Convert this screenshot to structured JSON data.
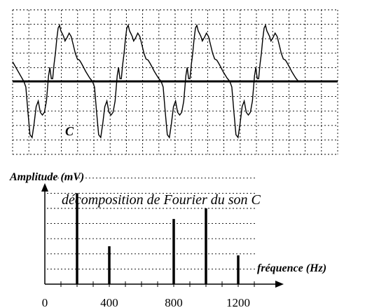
{
  "chart_data": [
    {
      "type": "line",
      "title": "",
      "curve_label": "C",
      "xlabel": "",
      "ylabel": "",
      "grid": true,
      "baseline": "center",
      "periods": 4,
      "waveform_period_samples": [
        [
          0.0,
          0.0
        ],
        [
          0.03,
          -0.1
        ],
        [
          0.06,
          -0.55
        ],
        [
          0.09,
          -0.95
        ],
        [
          0.12,
          -1.0
        ],
        [
          0.15,
          -0.75
        ],
        [
          0.18,
          -0.45
        ],
        [
          0.21,
          -0.35
        ],
        [
          0.24,
          -0.55
        ],
        [
          0.27,
          -0.6
        ],
        [
          0.3,
          -0.55
        ],
        [
          0.33,
          -0.35
        ],
        [
          0.36,
          0.1
        ],
        [
          0.38,
          0.25
        ],
        [
          0.4,
          0.05
        ],
        [
          0.42,
          0.05
        ],
        [
          0.44,
          0.3
        ],
        [
          0.46,
          0.5
        ],
        [
          0.48,
          0.75
        ],
        [
          0.5,
          0.95
        ],
        [
          0.52,
          1.0
        ],
        [
          0.54,
          0.9
        ],
        [
          0.56,
          0.85
        ],
        [
          0.58,
          0.8
        ],
        [
          0.6,
          0.72
        ],
        [
          0.63,
          0.78
        ],
        [
          0.66,
          0.86
        ],
        [
          0.69,
          0.8
        ],
        [
          0.72,
          0.65
        ],
        [
          0.75,
          0.5
        ],
        [
          0.78,
          0.4
        ],
        [
          0.81,
          0.38
        ],
        [
          0.84,
          0.32
        ],
        [
          0.87,
          0.25
        ],
        [
          0.9,
          0.18
        ],
        [
          0.93,
          0.12
        ],
        [
          0.96,
          0.06
        ],
        [
          1.0,
          0.0
        ]
      ]
    },
    {
      "type": "bar",
      "title": "décomposition de Fourier du son C",
      "xlabel": "fréquence (Hz)",
      "ylabel": "Amplitude (mV)",
      "xlim": [
        0,
        1400
      ],
      "x_ticks": [
        0,
        400,
        800,
        1200
      ],
      "x_tick_labels": [
        "0",
        "400",
        "800",
        "1200"
      ],
      "ylim": [
        0,
        8
      ],
      "grid": true,
      "x": [
        200,
        400,
        800,
        1000,
        1200
      ],
      "values": [
        6,
        2.5,
        4.3,
        5,
        1.9
      ]
    }
  ]
}
